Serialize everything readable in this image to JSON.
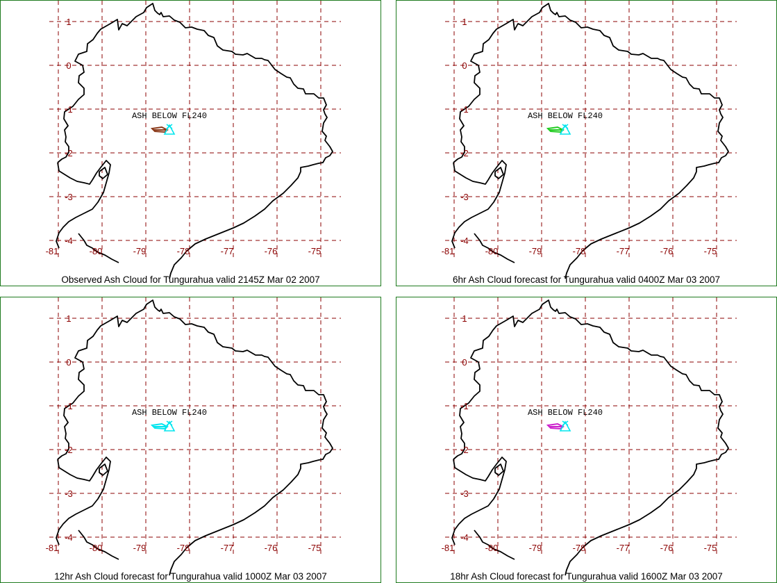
{
  "ash_label": "ASH BELOW FL240",
  "lon_labels": [
    "-81",
    "-80",
    "-79",
    "-78",
    "-77",
    "-76",
    "-75"
  ],
  "lat_labels": [
    "1",
    "0",
    "-1",
    "-2",
    "-3",
    "-4"
  ],
  "colors": {
    "grid": "#8b0000",
    "coast": "#000000",
    "panel_border": "#1e7a1e",
    "volcano_marker": "#00e5ee"
  },
  "panels": [
    {
      "caption": "Observed Ash Cloud for Tungurahua valid 2145Z Mar 02 2007",
      "ash_color": "#8b3a1a"
    },
    {
      "caption": "6hr Ash Cloud forecast for Tungurahua valid 0400Z Mar 03 2007",
      "ash_color": "#22cc22"
    },
    {
      "caption": "12hr Ash Cloud forecast for Tungurahua valid 1000Z Mar 03 2007",
      "ash_color": "#00e5ee"
    },
    {
      "caption": "18hr Ash Cloud forecast for Tungurahua valid 1600Z Mar 03 2007",
      "ash_color": "#cc22cc"
    }
  ]
}
